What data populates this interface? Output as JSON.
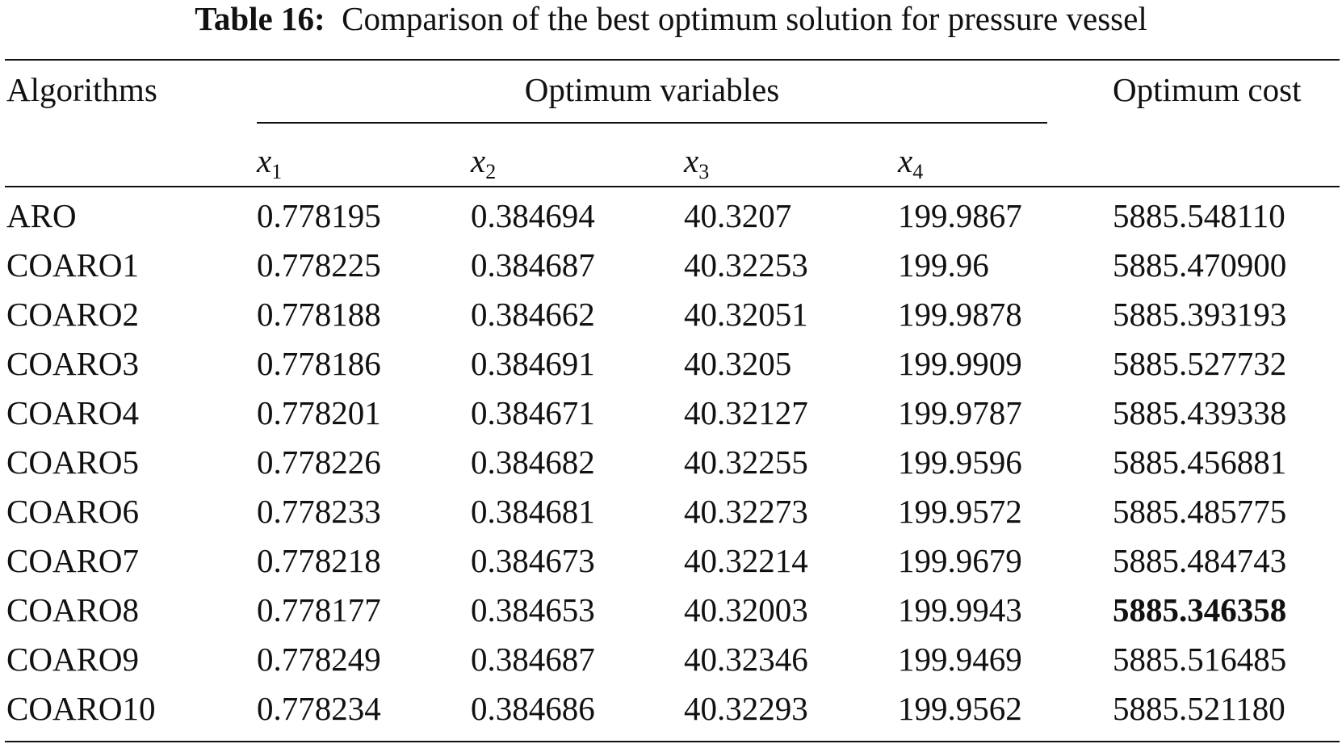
{
  "caption": {
    "label": "Table 16:",
    "text": "Comparison of the best optimum solution for pressure vessel"
  },
  "header": {
    "algorithms": "Algorithms",
    "optimum_variables": "Optimum variables",
    "optimum_cost": "Optimum cost",
    "variables": [
      {
        "symbol": "x",
        "sub": "1"
      },
      {
        "symbol": "x",
        "sub": "2"
      },
      {
        "symbol": "x",
        "sub": "3"
      },
      {
        "symbol": "x",
        "sub": "4"
      }
    ]
  },
  "rows": [
    {
      "alg": "ARO",
      "x1": "0.778195",
      "x2": "0.384694",
      "x3": "40.3207",
      "x4": "199.9867",
      "cost": "5885.548110"
    },
    {
      "alg": "COARO1",
      "x1": "0.778225",
      "x2": "0.384687",
      "x3": "40.32253",
      "x4": "199.96",
      "cost": "5885.470900"
    },
    {
      "alg": "COARO2",
      "x1": "0.778188",
      "x2": "0.384662",
      "x3": "40.32051",
      "x4": "199.9878",
      "cost": "5885.393193"
    },
    {
      "alg": "COARO3",
      "x1": "0.778186",
      "x2": "0.384691",
      "x3": "40.3205",
      "x4": "199.9909",
      "cost": "5885.527732"
    },
    {
      "alg": "COARO4",
      "x1": "0.778201",
      "x2": "0.384671",
      "x3": "40.32127",
      "x4": "199.9787",
      "cost": "5885.439338"
    },
    {
      "alg": "COARO5",
      "x1": "0.778226",
      "x2": "0.384682",
      "x3": "40.32255",
      "x4": "199.9596",
      "cost": "5885.456881"
    },
    {
      "alg": "COARO6",
      "x1": "0.778233",
      "x2": "0.384681",
      "x3": "40.32273",
      "x4": "199.9572",
      "cost": "5885.485775"
    },
    {
      "alg": "COARO7",
      "x1": "0.778218",
      "x2": "0.384673",
      "x3": "40.32214",
      "x4": "199.9679",
      "cost": "5885.484743"
    },
    {
      "alg": "COARO8",
      "x1": "0.778177",
      "x2": "0.384653",
      "x3": "40.32003",
      "x4": "199.9943",
      "cost": "5885.346358",
      "best": true
    },
    {
      "alg": "COARO9",
      "x1": "0.778249",
      "x2": "0.384687",
      "x3": "40.32346",
      "x4": "199.9469",
      "cost": "5885.516485"
    },
    {
      "alg": "COARO10",
      "x1": "0.778234",
      "x2": "0.384686",
      "x3": "40.32293",
      "x4": "199.9562",
      "cost": "5885.521180"
    }
  ]
}
